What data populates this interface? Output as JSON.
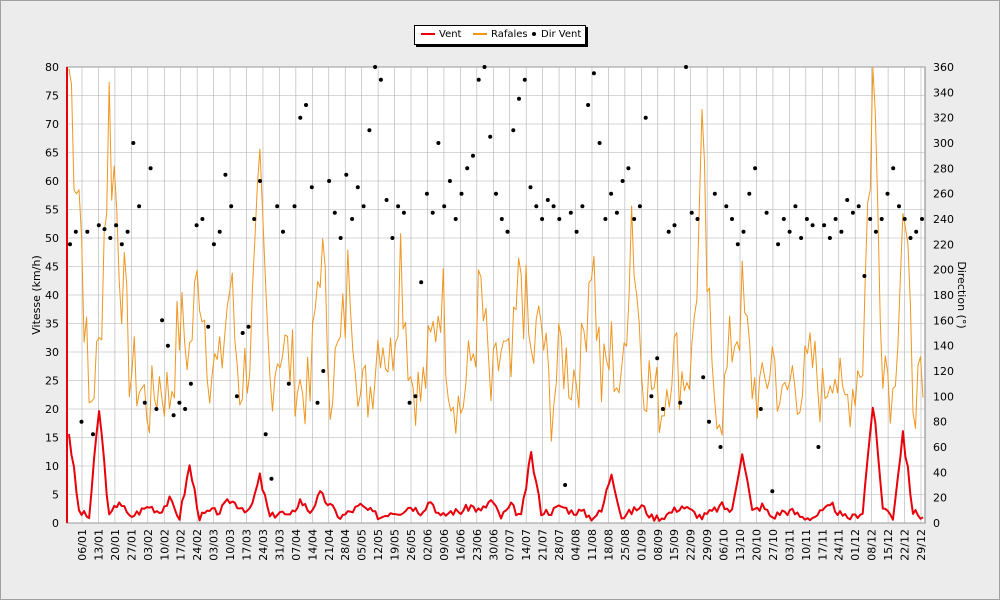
{
  "colors": {
    "vent": "#e8000b",
    "rafales": "#f0961e",
    "dir": "#000000",
    "grid": "#b0b0b0"
  },
  "chart_data": {
    "type": "line",
    "title": "",
    "y_left_label": "Vitesse (km/h)",
    "y_right_label": "Direction (°)",
    "y_left_range": [
      0,
      80
    ],
    "y_right_range": [
      0,
      360
    ],
    "y_left_ticks": [
      0,
      5,
      10,
      15,
      20,
      25,
      30,
      35,
      40,
      45,
      50,
      55,
      60,
      65,
      70,
      75,
      80
    ],
    "y_right_ticks": [
      0,
      20,
      40,
      60,
      80,
      100,
      120,
      140,
      160,
      180,
      200,
      220,
      240,
      260,
      280,
      300,
      320,
      340,
      360
    ],
    "grid": true,
    "legend_position": "top-center",
    "x_ticks": [
      "06/01",
      "13/01",
      "20/01",
      "27/01",
      "03/02",
      "10/02",
      "17/02",
      "24/02",
      "03/03",
      "10/03",
      "17/03",
      "24/03",
      "31/03",
      "07/04",
      "14/04",
      "21/04",
      "28/04",
      "05/05",
      "12/05",
      "19/05",
      "26/05",
      "02/06",
      "09/06",
      "16/06",
      "23/06",
      "30/06",
      "07/07",
      "14/07",
      "21/07",
      "28/07",
      "04/08",
      "11/08",
      "18/08",
      "25/08",
      "01/09",
      "08/09",
      "15/09",
      "22/09",
      "29/09",
      "06/10",
      "13/10",
      "20/10",
      "27/10",
      "03/11",
      "10/11",
      "17/11",
      "24/11",
      "01/12",
      "08/12",
      "15/12",
      "22/12",
      "29/12"
    ],
    "series": [
      {
        "name": "Vent",
        "weekly_values": [
          16,
          2,
          1,
          20,
          1,
          4,
          1,
          2,
          3,
          2,
          4,
          1,
          10,
          1,
          2,
          2,
          4,
          3,
          2,
          8,
          1,
          2,
          1,
          4,
          2,
          5,
          3,
          1,
          2,
          3,
          2,
          1,
          2,
          2,
          3,
          2,
          4,
          1,
          2,
          2,
          3,
          2,
          4,
          1,
          3,
          1,
          12,
          2,
          2,
          3,
          2,
          2,
          1,
          2,
          9,
          1,
          2,
          3,
          1,
          1,
          2,
          3,
          2,
          1,
          2,
          3,
          2,
          13,
          2,
          3,
          1,
          2,
          2,
          1,
          1,
          2,
          3,
          1,
          1,
          2,
          21,
          3,
          1,
          16,
          2,
          1
        ]
      },
      {
        "name": "Rafales",
        "weekly_values": [
          80,
          60,
          20,
          30,
          72,
          50,
          28,
          24,
          20,
          25,
          22,
          35,
          30,
          45,
          28,
          26,
          42,
          24,
          30,
          55,
          25,
          32,
          28,
          24,
          22,
          50,
          25,
          30,
          45,
          22,
          24,
          35,
          28,
          48,
          26,
          22,
          30,
          42,
          24,
          20,
          28,
          40,
          22,
          30,
          25,
          45,
          28,
          35,
          20,
          30,
          26,
          28,
          50,
          24,
          30,
          22,
          56,
          28,
          24,
          20,
          30,
          26,
          28,
          62,
          24,
          20,
          32,
          38,
          25,
          22,
          30,
          20,
          26,
          24,
          28,
          22,
          30,
          20,
          24,
          30,
          79,
          32,
          22,
          56,
          24,
          22
        ]
      },
      {
        "name": "Dir Vent",
        "values": [
          220,
          230,
          80,
          230,
          70,
          235,
          232,
          225,
          235,
          220,
          230,
          300,
          250,
          95,
          280,
          90,
          160,
          140,
          85,
          95,
          90,
          110,
          235,
          240,
          155,
          220,
          230,
          275,
          250,
          100,
          150,
          155,
          240,
          270,
          70,
          35,
          250,
          230,
          110,
          250,
          320,
          330,
          265,
          95,
          120,
          270,
          245,
          225,
          275,
          240,
          265,
          250,
          310,
          360,
          350,
          255,
          225,
          250,
          245,
          95,
          100,
          190,
          260,
          245,
          300,
          250,
          270,
          240,
          260,
          280,
          290,
          350,
          360,
          305,
          260,
          240,
          230,
          310,
          335,
          350,
          265,
          250,
          240,
          255,
          250,
          240,
          30,
          245,
          230,
          250,
          330,
          355,
          300,
          240,
          260,
          245,
          270,
          280,
          240,
          250,
          320,
          100,
          130,
          90,
          230,
          235,
          95,
          360,
          245,
          240,
          115,
          80,
          260,
          60,
          250,
          240,
          220,
          230,
          260,
          280,
          90,
          245,
          25,
          220,
          240,
          230,
          250,
          225,
          240,
          235,
          60,
          235,
          225,
          240,
          230,
          255,
          245,
          250,
          195,
          240,
          230,
          240,
          260,
          280,
          250,
          240,
          225,
          230,
          240
        ]
      }
    ]
  }
}
